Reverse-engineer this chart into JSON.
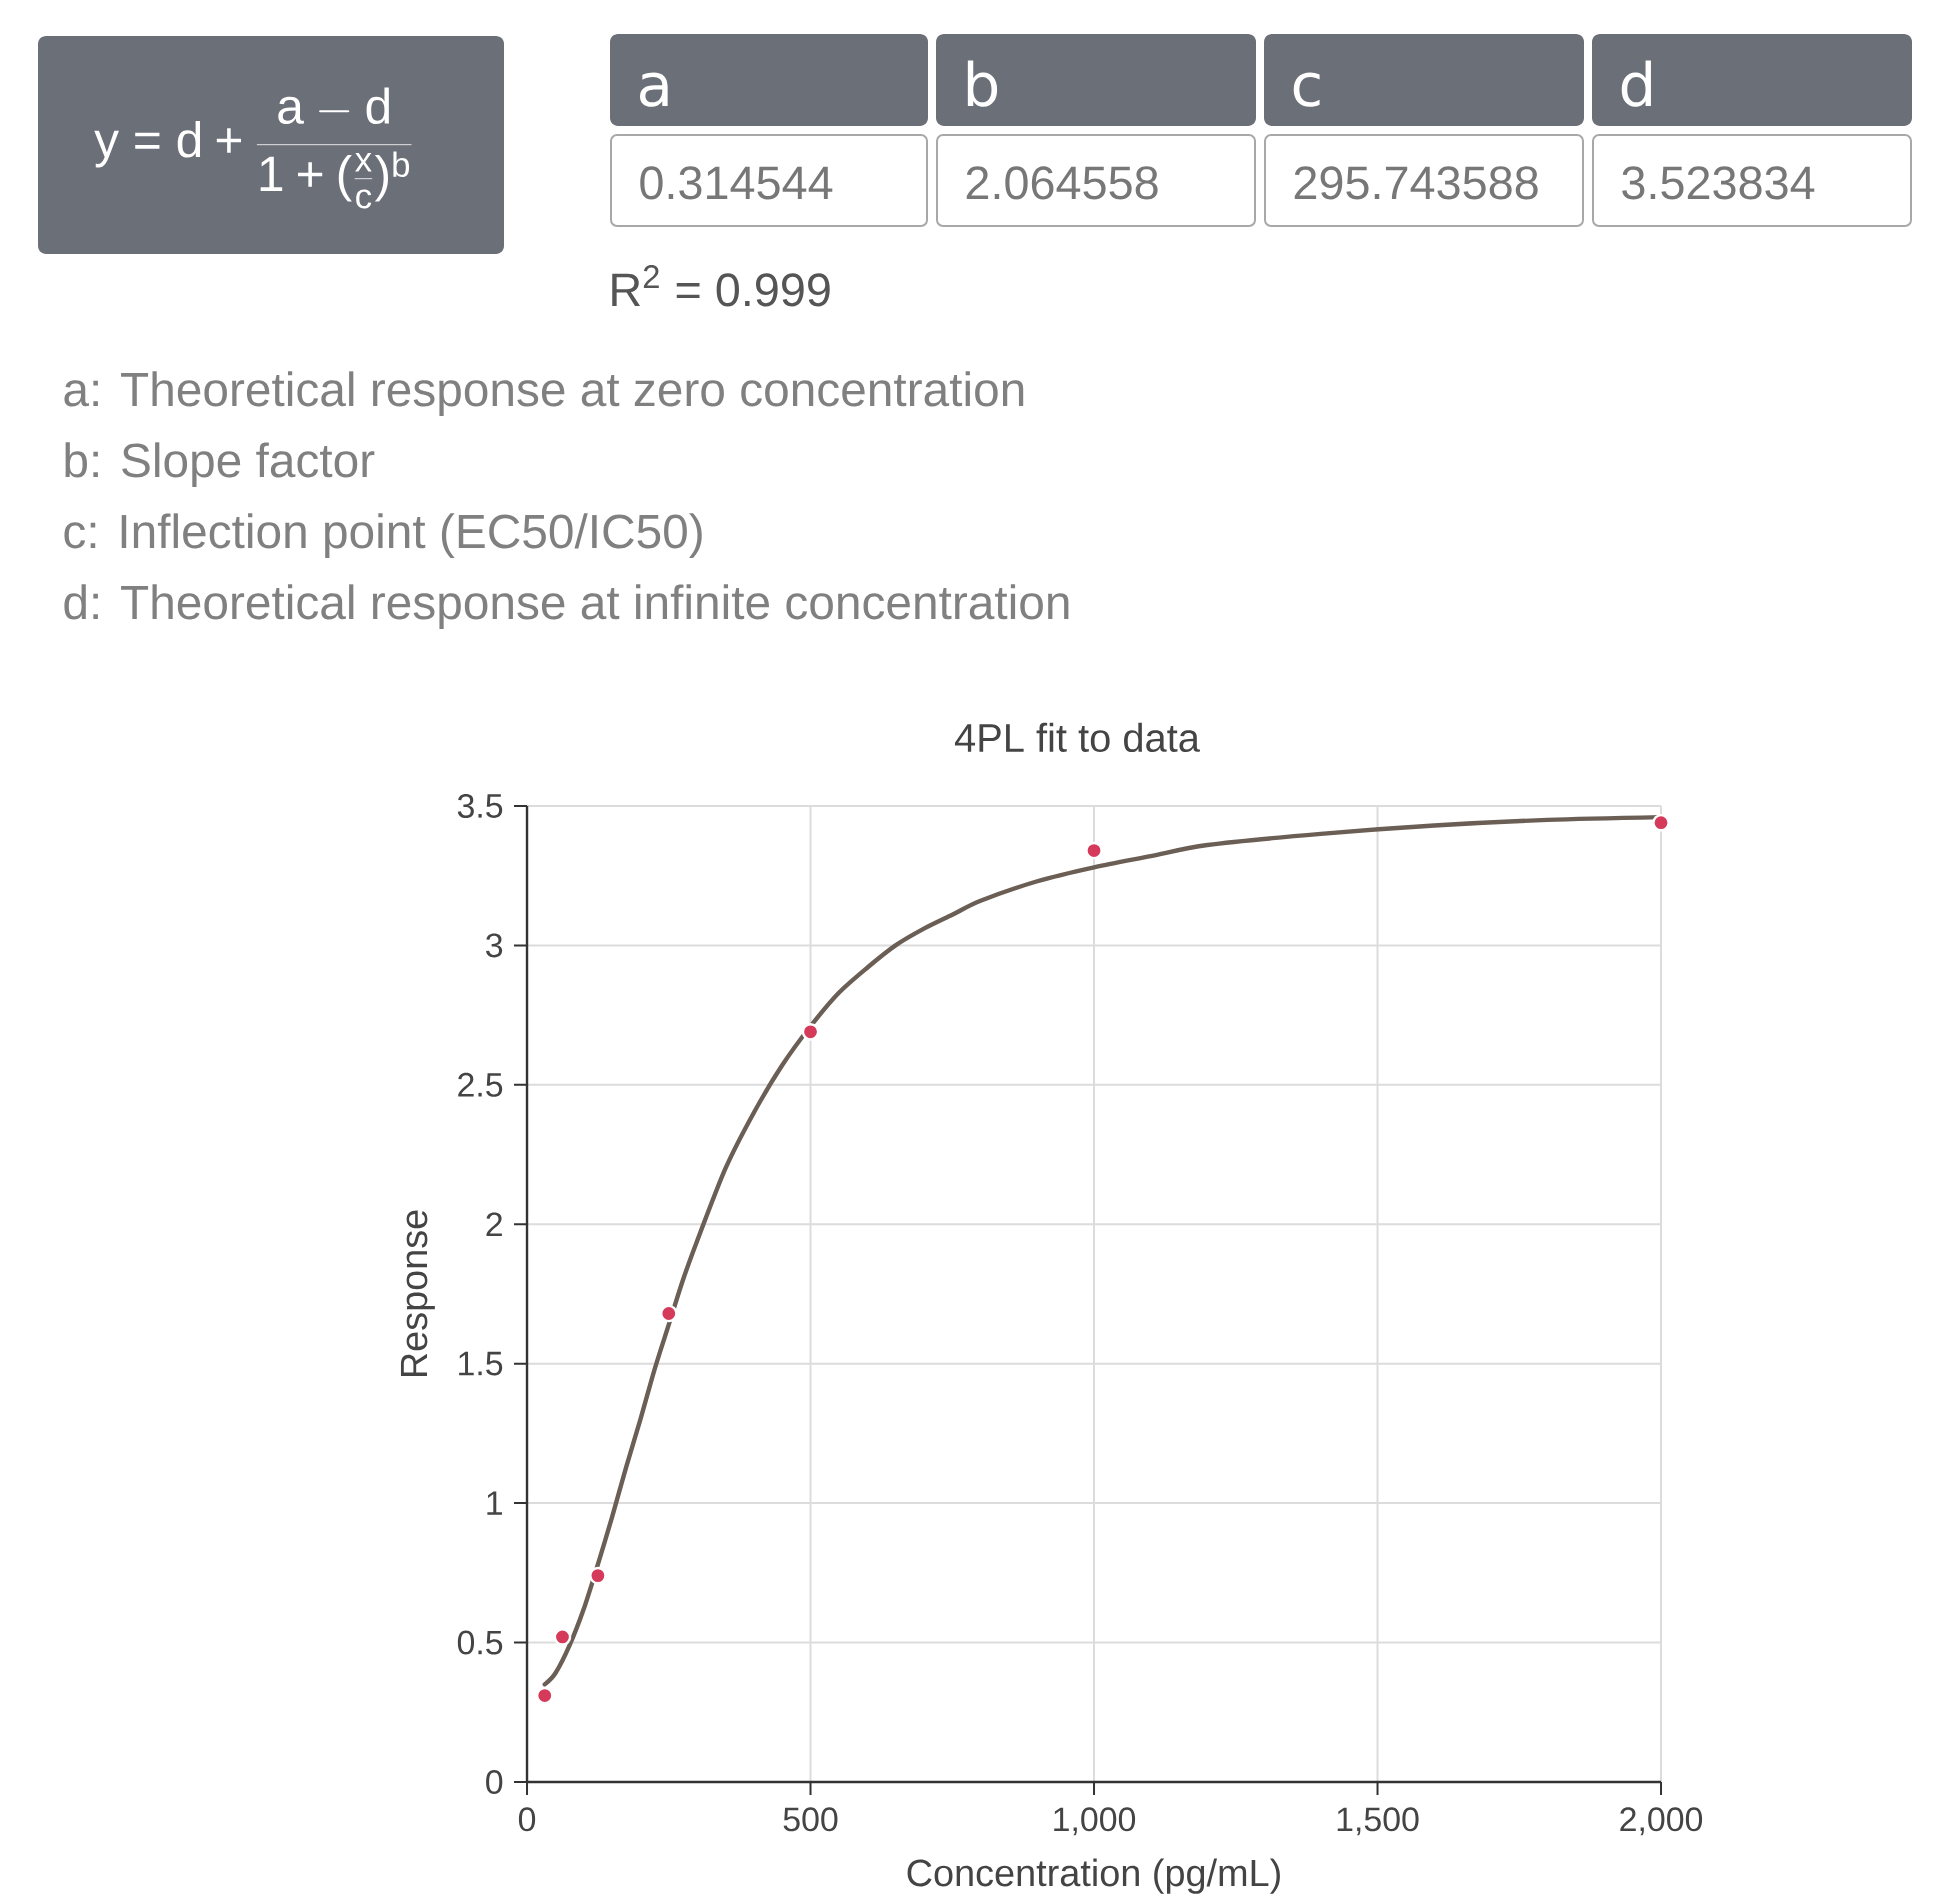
{
  "chart_data": [
    {
      "type": "other",
      "annotations": [
        "y = d + \\frac{a - d}{1 + (\\frac{x}{c})^{b}}",
        "a",
        "b",
        "c",
        "d",
        "0.314544",
        "2.064558",
        "295.743588",
        "3.523834",
        "R$^{2}$ = 0.999",
        "a: Theoretical response at zero concentration",
        "b: Slope factor",
        "c: Inflection point (EC50/IC50)",
        "d: Theoretical response at infinite concentration"
      ]
    },
    {
      "type": "scatter",
      "title": "4PL fit to data",
      "xlabel": "Concentration (pg/mL)",
      "ylabel": "Response",
      "xlim": [
        0,
        2000
      ],
      "ylim": [
        0,
        3.5
      ],
      "xticks": [
        0,
        500,
        {
          "value": 1000,
          "label": "1,000"
        },
        {
          "value": 1500,
          "label": "1,500"
        },
        {
          "value": 2000,
          "label": "2,000"
        }
      ],
      "yticks": [
        0,
        0.5,
        1,
        1.5,
        2,
        2.5,
        3,
        3.5
      ],
      "grid": true,
      "series": [
        {
          "type": "line",
          "color": "#6b5e55",
          "marker": "none",
          "x": [
            31.25,
            50,
            75,
            100,
            125,
            150,
            175,
            200,
            225,
            250,
            275,
            300,
            350,
            400,
            450,
            500,
            550,
            600,
            650,
            700,
            750,
            800,
            900,
            1000,
            1100,
            1200,
            1400,
            1600,
            1800,
            2000
          ],
          "values": [
            0.35,
            0.39,
            0.49,
            0.62,
            0.78,
            0.95,
            1.13,
            1.3,
            1.48,
            1.64,
            1.8,
            1.94,
            2.2,
            2.4,
            2.57,
            2.71,
            2.83,
            2.92,
            3.0,
            3.06,
            3.11,
            3.16,
            3.23,
            3.28,
            3.32,
            3.36,
            3.4,
            3.43,
            3.45,
            3.46
          ]
        },
        {
          "type": "scatter",
          "color": "#d63a5a",
          "marker": "circle",
          "x": [
            31.25,
            62.5,
            125,
            250,
            500,
            1000,
            2000
          ],
          "values": [
            0.31,
            0.52,
            0.74,
            1.68,
            2.69,
            3.34,
            3.44
          ]
        }
      ]
    }
  ]
}
